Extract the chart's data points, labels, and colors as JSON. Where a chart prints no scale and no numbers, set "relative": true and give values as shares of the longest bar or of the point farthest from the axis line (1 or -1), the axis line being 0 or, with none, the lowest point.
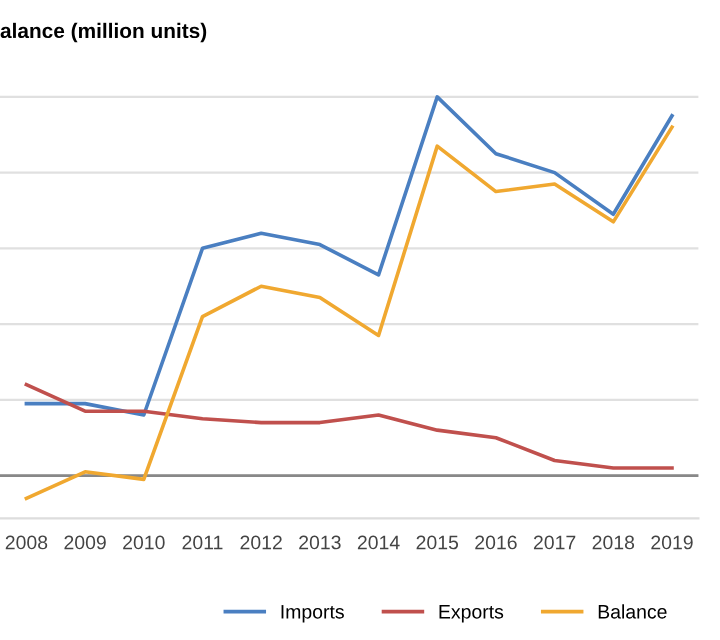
{
  "chart_data": {
    "type": "line",
    "title": "alance (million units)",
    "relative": true,
    "categories": [
      "2008",
      "2009",
      "2010",
      "2011",
      "2012",
      "2013",
      "2014",
      "2015",
      "2016",
      "2017",
      "2018",
      "2019"
    ],
    "series": [
      {
        "name": "Imports",
        "color": "#4a7fc1",
        "values": [
          0.19,
          0.19,
          0.16,
          0.6,
          0.64,
          0.61,
          0.53,
          1,
          0.85,
          0.8,
          0.69,
          0.95
        ]
      },
      {
        "name": "Exports",
        "color": "#c0504d",
        "values": [
          0.24,
          0.17,
          0.17,
          0.15,
          0.14,
          0.14,
          0.16,
          0.12,
          0.1,
          0.04,
          0.02,
          0.02
        ]
      },
      {
        "name": "Balance",
        "color": "#f0a830",
        "values": [
          -0.06,
          0.01,
          -0.01,
          0.42,
          0.5,
          0.47,
          0.37,
          0.87,
          0.75,
          0.77,
          0.67,
          0.92
        ]
      }
    ],
    "grid": "y",
    "legend": "bottom",
    "marker": "none",
    "line_style": "solid"
  }
}
